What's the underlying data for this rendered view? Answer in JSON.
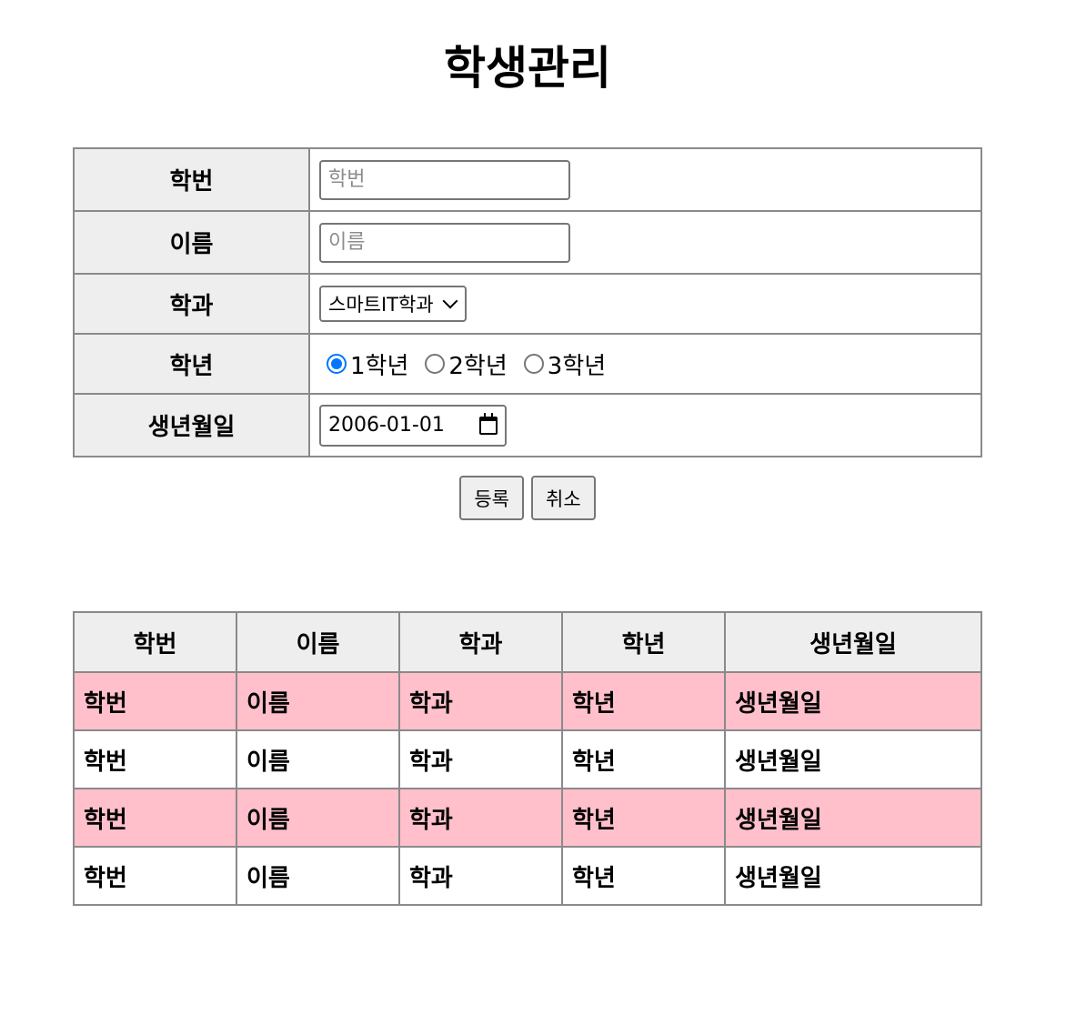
{
  "page": {
    "title": "학생관리"
  },
  "form": {
    "student_id": {
      "label": "학번",
      "placeholder": "학번",
      "value": ""
    },
    "name": {
      "label": "이름",
      "placeholder": "이름",
      "value": ""
    },
    "department": {
      "label": "학과",
      "selected": "스마트IT학과"
    },
    "grade": {
      "label": "학년",
      "options": [
        "1학년",
        "2학년",
        "3학년"
      ],
      "selected": "1학년"
    },
    "birthdate": {
      "label": "생년월일",
      "value": "2006-01-01"
    },
    "buttons": {
      "register": "등록",
      "cancel": "취소"
    }
  },
  "list": {
    "headers": [
      "학번",
      "이름",
      "학과",
      "학년",
      "생년월일"
    ],
    "rows": [
      [
        "학번",
        "이름",
        "학과",
        "학년",
        "생년월일"
      ],
      [
        "학번",
        "이름",
        "학과",
        "학년",
        "생년월일"
      ],
      [
        "학번",
        "이름",
        "학과",
        "학년",
        "생년월일"
      ],
      [
        "학번",
        "이름",
        "학과",
        "학년",
        "생년월일"
      ]
    ],
    "row_highlight_color": "#ffc0cb"
  },
  "colors": {
    "header_bg": "#eeeeee",
    "border": "#8a8a8a",
    "radio_accent": "#0075ff"
  },
  "icons": {
    "select_arrow": "chevron-down-icon",
    "date_picker": "calendar-icon"
  }
}
